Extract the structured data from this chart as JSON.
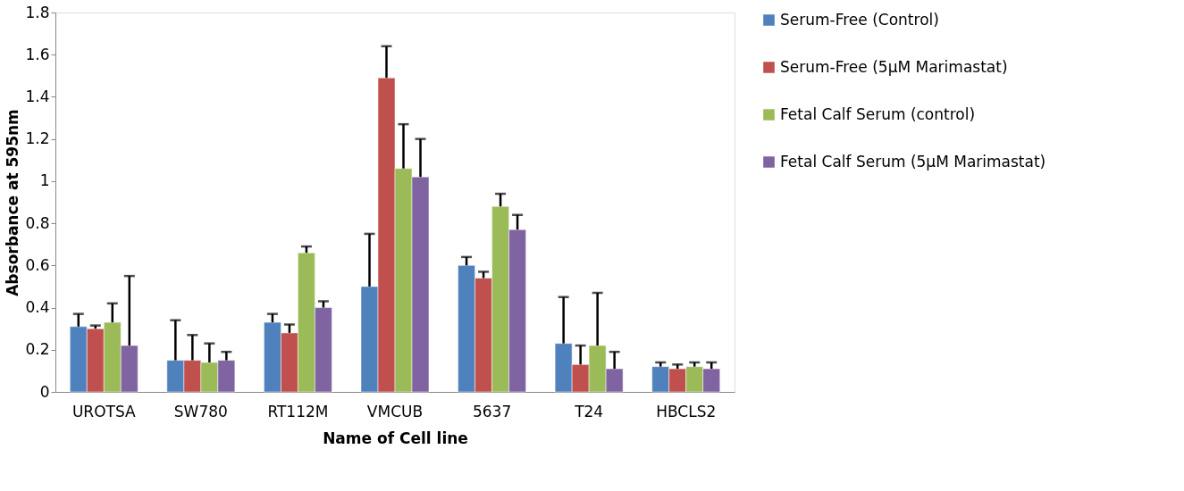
{
  "chart_data": {
    "type": "bar",
    "xlabel": "Name of Cell line",
    "ylabel": "Absorbance at 595nm",
    "categories": [
      "UROTSA",
      "SW780",
      "RT112M",
      "VMCUB",
      "5637",
      "T24",
      "HBCLS2"
    ],
    "series": [
      {
        "name": "Serum-Free (Control)",
        "color": "#4f81bd",
        "values": [
          0.31,
          0.15,
          0.33,
          0.5,
          0.6,
          0.23,
          0.12
        ],
        "errors": [
          [
            0.31,
            0.37
          ],
          [
            0.15,
            0.34
          ],
          [
            0.33,
            0.37
          ],
          [
            0.5,
            0.75
          ],
          [
            0.6,
            0.64
          ],
          [
            0.23,
            0.45
          ],
          [
            0.12,
            0.14
          ]
        ]
      },
      {
        "name": "Serum-Free (5μM Marimastat)",
        "color": "#c0504d",
        "values": [
          0.3,
          0.15,
          0.28,
          1.49,
          0.54,
          0.13,
          0.11
        ],
        "errors": [
          [
            0.3,
            0.315
          ],
          [
            0.15,
            0.27
          ],
          [
            0.28,
            0.32
          ],
          [
            1.49,
            1.64
          ],
          [
            0.54,
            0.57
          ],
          [
            0.13,
            0.22
          ],
          [
            0.11,
            0.13
          ]
        ]
      },
      {
        "name": "Fetal Calf Serum (control)",
        "color": "#9bbb59",
        "values": [
          0.33,
          0.14,
          0.66,
          1.06,
          0.88,
          0.22,
          0.12
        ],
        "errors": [
          [
            0.33,
            0.42
          ],
          [
            0.14,
            0.23
          ],
          [
            0.66,
            0.69
          ],
          [
            1.06,
            1.27
          ],
          [
            0.88,
            0.94
          ],
          [
            0.22,
            0.47
          ],
          [
            0.12,
            0.14
          ]
        ]
      },
      {
        "name": "Fetal Calf Serum (5μM Marimastat)",
        "color": "#8064a2",
        "values": [
          0.22,
          0.15,
          0.4,
          1.02,
          0.77,
          0.11,
          0.11
        ],
        "errors": [
          [
            0.22,
            0.55
          ],
          [
            0.15,
            0.19
          ],
          [
            0.4,
            0.43
          ],
          [
            1.02,
            1.2
          ],
          [
            0.77,
            0.84
          ],
          [
            0.11,
            0.19
          ],
          [
            0.11,
            0.14
          ]
        ]
      }
    ],
    "ylim": [
      0,
      1.8
    ],
    "yticks": [
      0,
      0.2,
      0.4,
      0.6,
      0.8,
      1,
      1.2,
      1.4,
      1.6,
      1.8
    ],
    "grid": false,
    "legend": "right"
  }
}
